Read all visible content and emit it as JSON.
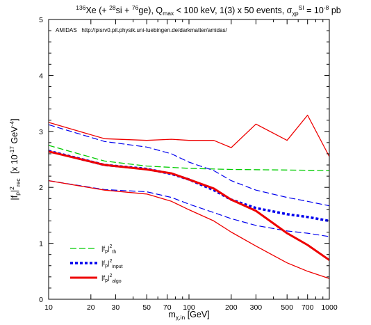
{
  "chart_data": {
    "type": "line",
    "title": {
      "sup1": "136",
      "part1": "Xe (+ ",
      "sup2": "28",
      "part2": "si + ",
      "sup3": "76",
      "part3": "ge), Q",
      "sub1": "max",
      "part4": " < 100 keV, 1(3) x 50 events, σ",
      "sub2": "χp",
      "sup4": "SI",
      "part5": " = 10",
      "sup5": "-8",
      "part6": " pb"
    },
    "annotation": "AMIDAS   http://pisrv0.pit.physik.uni-tuebingen.de/darkmatter/amidas/",
    "xlabel": {
      "main": "m",
      "sub": "χ,in",
      "unit": " [GeV]"
    },
    "ylabel": {
      "p1": "|f",
      "sub1": "p",
      "p2": "|",
      "sup1": "2",
      "sub2": "rec",
      "p3": "  [x 10",
      "sup2": "-17",
      "p4": " GeV",
      "sup3": "-4",
      "p5": "]"
    },
    "x_scale": "log",
    "xlim": [
      10,
      1000
    ],
    "ylim": [
      0,
      5
    ],
    "x_ticks": [
      {
        "value": 10,
        "label": "10"
      },
      {
        "value": 20,
        "label": "20"
      },
      {
        "value": 30,
        "label": "30"
      },
      {
        "value": 50,
        "label": "50"
      },
      {
        "value": 70,
        "label": "70"
      },
      {
        "value": 100,
        "label": "100"
      },
      {
        "value": 200,
        "label": "200"
      },
      {
        "value": 300,
        "label": "300"
      },
      {
        "value": 500,
        "label": "500"
      },
      {
        "value": 700,
        "label": "700"
      },
      {
        "value": 1000,
        "label": "1000"
      }
    ],
    "y_ticks": [
      {
        "value": 0,
        "label": "0"
      },
      {
        "value": 1,
        "label": "1"
      },
      {
        "value": 2,
        "label": "2"
      },
      {
        "value": 3,
        "label": "3"
      },
      {
        "value": 4,
        "label": "4"
      },
      {
        "value": 5,
        "label": "5"
      }
    ],
    "grid": false,
    "legend_position": "bottom-left",
    "legend": [
      {
        "series": "th",
        "base": "|f",
        "sub1": "p",
        "mid": "|",
        "sup": "2",
        "sub2": "th"
      },
      {
        "series": "input",
        "base": "|f",
        "sub1": "p",
        "mid": "|",
        "sup": "2",
        "sub2": "input"
      },
      {
        "series": "algo",
        "base": "|f",
        "sub1": "p",
        "mid": "|",
        "sup": "2",
        "sub2": "algo"
      }
    ],
    "series": [
      {
        "key": "th",
        "role": "main",
        "color": "#00cc00",
        "dash": "dashed",
        "width": 1.3,
        "x": [
          10,
          25,
          50,
          100,
          200,
          500,
          1000
        ],
        "y": [
          2.75,
          2.47,
          2.38,
          2.34,
          2.32,
          2.31,
          2.3
        ]
      },
      {
        "key": "input",
        "role": "main",
        "color": "#0000ee",
        "dash": "dotted",
        "width": 3.5,
        "x": [
          10,
          25,
          50,
          75,
          100,
          150,
          200,
          300,
          500,
          700,
          1000
        ],
        "y": [
          2.65,
          2.4,
          2.33,
          2.24,
          2.14,
          1.95,
          1.78,
          1.63,
          1.52,
          1.47,
          1.4
        ]
      },
      {
        "key": "input_hi",
        "role": "band",
        "color": "#0000ee",
        "dash": "dashed",
        "width": 1.2,
        "x": [
          10,
          25,
          50,
          75,
          100,
          150,
          200,
          300,
          500,
          700,
          1000
        ],
        "y": [
          3.12,
          2.82,
          2.72,
          2.6,
          2.45,
          2.3,
          2.12,
          1.95,
          1.82,
          1.75,
          1.67
        ]
      },
      {
        "key": "input_lo",
        "role": "band",
        "color": "#0000ee",
        "dash": "dashed",
        "width": 1.2,
        "x": [
          10,
          25,
          50,
          75,
          100,
          150,
          200,
          300,
          500,
          700,
          1000
        ],
        "y": [
          2.12,
          1.96,
          1.92,
          1.82,
          1.7,
          1.55,
          1.44,
          1.32,
          1.22,
          1.18,
          1.12
        ]
      },
      {
        "key": "algo",
        "role": "main",
        "color": "#ee0000",
        "dash": "solid",
        "width": 3,
        "x": [
          10,
          25,
          50,
          75,
          100,
          150,
          200,
          300,
          500,
          700,
          1000
        ],
        "y": [
          2.64,
          2.4,
          2.32,
          2.25,
          2.14,
          1.98,
          1.78,
          1.58,
          1.18,
          0.97,
          0.7
        ]
      },
      {
        "key": "algo_hi",
        "role": "band",
        "color": "#ee0000",
        "dash": "solid",
        "width": 1.3,
        "x": [
          10,
          25,
          50,
          75,
          100,
          150,
          200,
          300,
          500,
          700,
          1000
        ],
        "y": [
          3.16,
          2.87,
          2.84,
          2.86,
          2.84,
          2.84,
          2.71,
          3.13,
          2.84,
          3.29,
          2.55
        ]
      },
      {
        "key": "algo_lo",
        "role": "band",
        "color": "#ee0000",
        "dash": "solid",
        "width": 1.3,
        "x": [
          10,
          25,
          50,
          75,
          100,
          150,
          200,
          300,
          500,
          700,
          1000
        ],
        "y": [
          2.12,
          1.95,
          1.88,
          1.75,
          1.6,
          1.4,
          1.2,
          0.95,
          0.65,
          0.5,
          0.37
        ]
      }
    ]
  }
}
